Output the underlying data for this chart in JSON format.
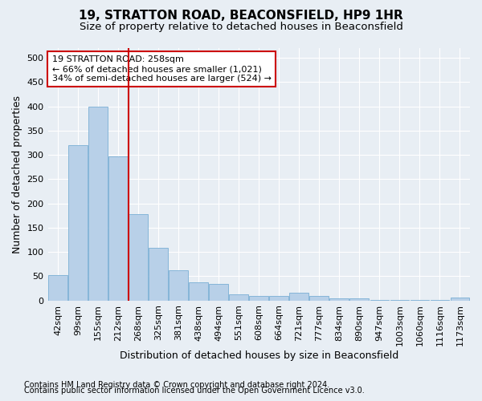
{
  "title": "19, STRATTON ROAD, BEACONSFIELD, HP9 1HR",
  "subtitle": "Size of property relative to detached houses in Beaconsfield",
  "xlabel": "Distribution of detached houses by size in Beaconsfield",
  "ylabel": "Number of detached properties",
  "footnote1": "Contains HM Land Registry data © Crown copyright and database right 2024.",
  "footnote2": "Contains public sector information licensed under the Open Government Licence v3.0.",
  "categories": [
    "42sqm",
    "99sqm",
    "155sqm",
    "212sqm",
    "268sqm",
    "325sqm",
    "381sqm",
    "438sqm",
    "494sqm",
    "551sqm",
    "608sqm",
    "664sqm",
    "721sqm",
    "777sqm",
    "834sqm",
    "890sqm",
    "947sqm",
    "1003sqm",
    "1060sqm",
    "1116sqm",
    "1173sqm"
  ],
  "values": [
    53,
    320,
    400,
    297,
    178,
    108,
    63,
    38,
    35,
    12,
    10,
    10,
    16,
    10,
    5,
    5,
    1,
    1,
    1,
    1,
    6
  ],
  "bar_color": "#b8d0e8",
  "bar_edge_color": "#7aafd4",
  "property_line_color": "#cc0000",
  "annotation_text": "19 STRATTON ROAD: 258sqm\n← 66% of detached houses are smaller (1,021)\n34% of semi-detached houses are larger (524) →",
  "annotation_box_color": "#ffffff",
  "annotation_box_edge": "#cc0000",
  "ylim": [
    0,
    520
  ],
  "yticks": [
    0,
    50,
    100,
    150,
    200,
    250,
    300,
    350,
    400,
    450,
    500
  ],
  "background_color": "#e8eef4",
  "grid_color": "#ffffff",
  "title_fontsize": 11,
  "subtitle_fontsize": 9.5,
  "axis_label_fontsize": 9,
  "tick_fontsize": 8,
  "footnote_fontsize": 7
}
